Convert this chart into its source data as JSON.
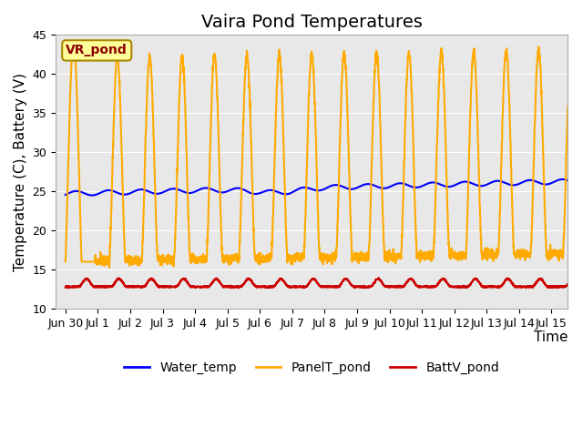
{
  "title": "Vaira Pond Temperatures",
  "ylabel": "Temperature (C), Battery (V)",
  "xlabel": "Time",
  "xlim_days": [
    0,
    15.5
  ],
  "ylim": [
    10,
    45
  ],
  "yticks": [
    10,
    15,
    20,
    25,
    30,
    35,
    40,
    45
  ],
  "xtick_labels": [
    "Jun 30",
    "Jul 1",
    "Jul 2",
    "Jul 3",
    "Jul 4",
    "Jul 5",
    "Jul 6",
    "Jul 7",
    "Jul 8",
    "Jul 9",
    "Jul 10",
    "Jul 11",
    "Jul 12",
    "Jul 13",
    "Jul 14",
    "Jul 15"
  ],
  "xtick_positions": [
    0,
    1,
    2,
    3,
    4,
    5,
    6,
    7,
    8,
    9,
    10,
    11,
    12,
    13,
    14,
    15
  ],
  "water_temp_color": "#0000ff",
  "panel_temp_color": "#ffaa00",
  "battv_color": "#cc0000",
  "bg_color": "#e8e8e8",
  "label_box_color": "#ffff99",
  "label_box_edge": "#aa8800",
  "label_text": "VR_pond",
  "legend_labels": [
    "Water_temp",
    "PanelT_pond",
    "BattV_pond"
  ],
  "title_fontsize": 14,
  "axis_fontsize": 11,
  "tick_fontsize": 9
}
